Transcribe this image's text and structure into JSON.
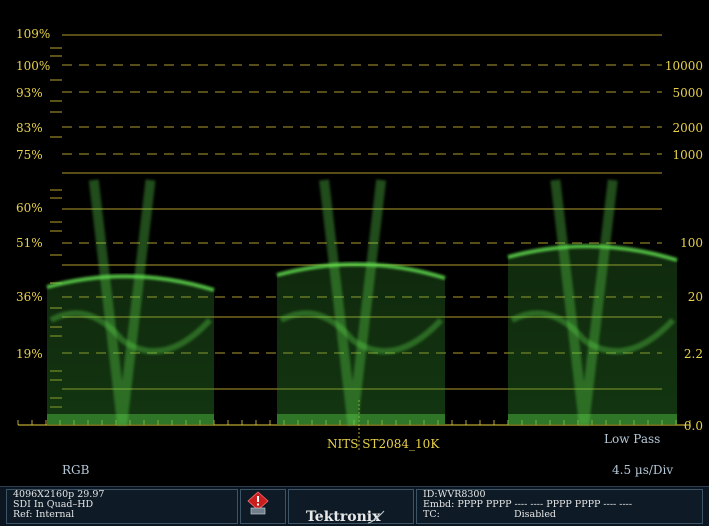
{
  "scope": {
    "left_scale": [
      "109%",
      "100%",
      "93%",
      "83%",
      "75%",
      "60%",
      "51%",
      "36%",
      "19%"
    ],
    "right_scale": [
      "10000",
      "5000",
      "2000",
      "1000",
      "100",
      "20",
      "2.2",
      "0.0"
    ],
    "curve_label": "NITS  ST2084_10K",
    "filter": "Low Pass",
    "color_space": "RGB",
    "sweep": "4.5 µs/Div",
    "trace_color": "#5ed94e",
    "graticule_color": "#e6d03c"
  },
  "status": {
    "format": "4096X2160p 29.97",
    "input": "SDI In Quad–HD",
    "ref": "Ref: Internal",
    "alarm_icon": "alarm-icon",
    "brand": "Tektronix",
    "id": "ID:WVR8300",
    "embd": "Embd: PPPP PPPP ---- ---- PPPP PPPP ---- ----",
    "tc_label": "TC:",
    "tc_value": "Disabled"
  }
}
